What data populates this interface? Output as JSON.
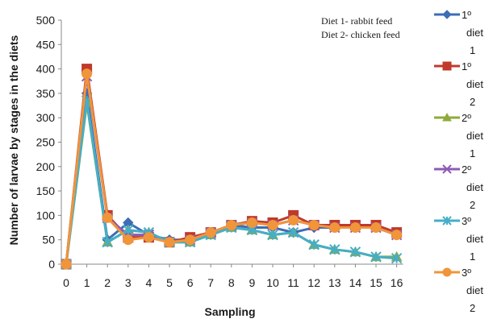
{
  "chart_data": {
    "type": "line",
    "xlabel": "Sampling",
    "ylabel": "Number of larvae by stages in the diets",
    "ylim": [
      0,
      500
    ],
    "yticks": [
      0,
      50,
      100,
      150,
      200,
      250,
      300,
      350,
      400,
      450,
      500
    ],
    "x": [
      0,
      1,
      2,
      3,
      4,
      5,
      6,
      7,
      8,
      9,
      10,
      11,
      12,
      13,
      14,
      15,
      16
    ],
    "grid": false,
    "legend_position": "right",
    "annotations": [
      "Diet 1- rabbit feed",
      "Diet 2- chicken feed"
    ],
    "series": [
      {
        "name": "1º diet 1",
        "color": "#3d6db5",
        "marker": "diamond",
        "values": [
          0,
          350,
          50,
          85,
          60,
          50,
          50,
          65,
          80,
          75,
          75,
          65,
          75,
          75,
          75,
          75,
          60
        ]
      },
      {
        "name": "1º diet 2",
        "color": "#c0392b",
        "marker": "square",
        "values": [
          0,
          400,
          100,
          55,
          55,
          45,
          55,
          65,
          80,
          88,
          85,
          100,
          80,
          80,
          80,
          80,
          65
        ]
      },
      {
        "name": "2º diet 1",
        "color": "#8faa3b",
        "marker": "triangle",
        "values": [
          0,
          330,
          45,
          70,
          65,
          45,
          45,
          60,
          75,
          70,
          60,
          65,
          40,
          30,
          25,
          15,
          15
        ]
      },
      {
        "name": "2º diet 2",
        "color": "#8e5bb3",
        "marker": "x",
        "values": [
          0,
          385,
          95,
          60,
          60,
          45,
          50,
          65,
          80,
          85,
          80,
          90,
          80,
          75,
          75,
          75,
          60
        ]
      },
      {
        "name": "3º diet 1",
        "color": "#45aec8",
        "marker": "asterisk",
        "values": [
          0,
          335,
          45,
          70,
          65,
          45,
          45,
          60,
          75,
          70,
          60,
          65,
          40,
          30,
          25,
          15,
          12
        ]
      },
      {
        "name": "3º diet 2",
        "color": "#f0953a",
        "marker": "circle",
        "values": [
          0,
          390,
          95,
          50,
          55,
          45,
          50,
          65,
          80,
          85,
          80,
          90,
          80,
          75,
          75,
          75,
          60
        ]
      }
    ]
  }
}
